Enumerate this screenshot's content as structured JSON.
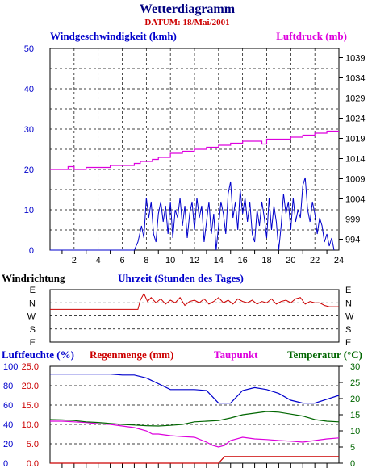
{
  "title": "Wetterdiagramm",
  "subtitle": "DATUM: 18/Mai/2001",
  "colors": {
    "title": "#000080",
    "subtitle": "#cc0000",
    "wind": "#0000cc",
    "pressure": "#dd00dd",
    "direction": "#cc0000",
    "humidity": "#0000cc",
    "rain": "#cc0000",
    "dewpoint": "#dd00dd",
    "temperature": "#006600"
  },
  "chart_data": [
    {
      "type": "line",
      "ylabel": "Windgeschwindigkeit (kmh)",
      "y2label": "Luftdruck (mb)",
      "xlabel": "Uhrzeit (Stunden des Tages)",
      "x_ticks": [
        "2",
        "4",
        "6",
        "8",
        "10",
        "12",
        "14",
        "16",
        "18",
        "20",
        "22",
        "24"
      ],
      "y_ticks": [
        "0",
        "10",
        "20",
        "30",
        "40",
        "50"
      ],
      "y2_ticks": [
        "994",
        "999",
        "1004",
        "1009",
        "1014",
        "1019",
        "1024",
        "1029",
        "1034",
        "1039"
      ],
      "xlim": [
        0,
        24
      ],
      "ylim": [
        0,
        50
      ],
      "y2lim": [
        991.3,
        1041.3
      ],
      "grid": true,
      "series": [
        {
          "name": "Windgeschwindigkeit (kmh)",
          "axis": "left",
          "x": [
            0,
            7.0,
            7.3,
            7.6,
            7.8,
            8.0,
            8.2,
            8.4,
            8.6,
            8.8,
            9.0,
            9.2,
            9.4,
            9.6,
            9.8,
            10.0,
            10.2,
            10.4,
            10.6,
            10.8,
            11.0,
            11.2,
            11.4,
            11.6,
            11.8,
            12.0,
            12.2,
            12.4,
            12.6,
            12.8,
            13.0,
            13.2,
            13.4,
            13.6,
            13.8,
            14.0,
            14.2,
            14.4,
            14.6,
            14.8,
            15.0,
            15.2,
            15.4,
            15.6,
            15.8,
            16.0,
            16.2,
            16.4,
            16.6,
            16.8,
            17.0,
            17.2,
            17.4,
            17.6,
            17.8,
            18.0,
            18.2,
            18.4,
            18.6,
            18.8,
            19.0,
            19.2,
            19.4,
            19.6,
            19.8,
            20.0,
            20.2,
            20.4,
            20.6,
            20.8,
            21.0,
            21.2,
            21.4,
            21.6,
            21.8,
            22.0,
            22.2,
            22.4,
            22.6,
            22.8,
            23.0,
            23.2,
            23.4,
            23.6
          ],
          "y": [
            0,
            0,
            2,
            6,
            3,
            13,
            8,
            12,
            4,
            2,
            9,
            12,
            7,
            11,
            4,
            12,
            3,
            10,
            8,
            13,
            6,
            11,
            3,
            9,
            12,
            5,
            13,
            8,
            11,
            2,
            7,
            12,
            4,
            9,
            0,
            6,
            12,
            9,
            4,
            14,
            17,
            8,
            12,
            5,
            15,
            9,
            13,
            7,
            12,
            4,
            2,
            10,
            6,
            12,
            8,
            3,
            13,
            5,
            11,
            7,
            0,
            6,
            14,
            9,
            12,
            5,
            13,
            7,
            10,
            8,
            16,
            18,
            10,
            7,
            12,
            9,
            4,
            8,
            6,
            2,
            4,
            1,
            3,
            0
          ]
        },
        {
          "name": "Luftdruck (mb)",
          "axis": "right",
          "x": [
            0,
            1,
            1.5,
            2,
            3,
            4,
            5,
            6,
            7,
            7.5,
            8,
            8.5,
            9,
            10,
            11,
            12,
            13,
            14,
            15,
            16,
            17,
            17.6,
            18,
            19,
            20,
            21,
            22,
            23,
            24
          ],
          "y": [
            1011.3,
            1011.3,
            1012.0,
            1011.3,
            1011.8,
            1011.8,
            1012.3,
            1012.3,
            1012.8,
            1013.3,
            1013.3,
            1013.8,
            1014.3,
            1015.3,
            1015.8,
            1016.3,
            1016.8,
            1017.3,
            1017.8,
            1018.3,
            1018.3,
            1017.6,
            1018.8,
            1018.8,
            1019.3,
            1019.8,
            1020.3,
            1020.8,
            1020.8
          ]
        }
      ]
    },
    {
      "type": "line",
      "ylabel": "Windrichtung",
      "categories": [
        "E",
        "S",
        "W",
        "N",
        "E"
      ],
      "xlim": [
        0,
        24
      ],
      "grid": true,
      "series": [
        {
          "name": "Windrichtung",
          "x": [
            0,
            7.3,
            7.5,
            7.8,
            8.1,
            8.4,
            8.8,
            9.2,
            9.6,
            10.0,
            10.4,
            10.8,
            11.2,
            11.6,
            12.0,
            12.4,
            12.8,
            13.2,
            13.6,
            14.0,
            14.4,
            14.8,
            15.2,
            15.6,
            16.0,
            16.4,
            16.8,
            17.2,
            17.6,
            18.0,
            18.4,
            18.8,
            19.2,
            19.6,
            20.0,
            20.4,
            20.8,
            21.2,
            21.6,
            22.0,
            22.4,
            22.8,
            23.2,
            23.6,
            24
          ],
          "y": [
            2.5,
            2.5,
            3.2,
            3.7,
            3.1,
            3.4,
            3.0,
            3.3,
            2.9,
            3.2,
            3.0,
            3.4,
            2.8,
            3.1,
            3.2,
            3.0,
            3.3,
            2.9,
            3.1,
            3.4,
            3.0,
            3.2,
            2.9,
            3.3,
            3.1,
            3.0,
            3.2,
            2.9,
            3.1,
            3.0,
            3.3,
            2.9,
            3.1,
            3.2,
            3.0,
            3.3,
            3.4,
            2.9,
            3.1,
            3.0,
            3.0,
            2.8,
            2.7,
            2.7,
            2.7
          ]
        }
      ]
    },
    {
      "type": "line",
      "ylabel": "Luftfeuchte (%)",
      "ylabel2": "Regenmenge (mm)",
      "ylabel3": "Taupunkt",
      "y2label": "Temperatur (°C)",
      "y_ticks_humidity": [
        "0",
        "20",
        "40",
        "60",
        "80",
        "100"
      ],
      "y_ticks_rain": [
        "0.0",
        "5.0",
        "10.0",
        "15.0",
        "20.0",
        "25.0"
      ],
      "y2_ticks": [
        "0",
        "5",
        "10",
        "15",
        "20",
        "25",
        "30"
      ],
      "xlim": [
        0,
        24
      ],
      "ylim": [
        0,
        100
      ],
      "y2lim": [
        0,
        30
      ],
      "grid": true,
      "series": [
        {
          "name": "Luftfeuchte (%)",
          "axis": "left",
          "x": [
            0,
            3,
            5,
            6,
            7,
            8,
            9,
            10,
            11,
            12,
            13,
            14,
            15,
            16,
            17,
            18,
            19,
            20,
            21,
            22,
            23,
            24
          ],
          "y": [
            92,
            92,
            92,
            91,
            91,
            88,
            82,
            76,
            76,
            76,
            75,
            62,
            62,
            75,
            78,
            76,
            72,
            65,
            62,
            62,
            66,
            70
          ],
          "values_unit": "%"
        },
        {
          "name": "Regenmenge (mm)",
          "axis": "left",
          "x": [
            0,
            0.2,
            0.3,
            13,
            14,
            14.5,
            16,
            24
          ],
          "y": [
            0,
            0,
            0,
            0,
            0,
            1.7,
            1.7,
            1.7
          ],
          "values_unit": "mm"
        },
        {
          "name": "Taupunkt",
          "axis": "right",
          "x": [
            0,
            1,
            2,
            3,
            4,
            5,
            6,
            7,
            8,
            8.5,
            9,
            10,
            11,
            12,
            13,
            13.5,
            14,
            14.5,
            15,
            16,
            17,
            18,
            19,
            20,
            21,
            22,
            23,
            24
          ],
          "y": [
            13,
            13,
            12.8,
            12.6,
            12.2,
            12.0,
            11.5,
            11,
            10,
            9,
            9,
            8.5,
            8.2,
            8,
            6.5,
            5.5,
            5,
            5.5,
            7,
            8,
            7.5,
            7.3,
            7,
            6.8,
            6.5,
            7,
            7.5,
            7.8
          ]
        },
        {
          "name": "Temperatur (°C)",
          "axis": "right",
          "x": [
            0,
            1,
            2,
            3,
            4,
            5,
            6,
            7,
            8,
            9,
            10,
            11,
            12,
            13,
            14,
            15,
            16,
            17,
            18,
            19,
            20,
            21,
            22,
            23,
            24
          ],
          "y": [
            13.5,
            13.4,
            13.2,
            12.8,
            12.6,
            12.3,
            12.0,
            11.8,
            11.6,
            11.5,
            11.7,
            12.0,
            12.8,
            13.0,
            13.2,
            14.0,
            15.0,
            15.5,
            16.0,
            15.8,
            15.2,
            14.6,
            13.5,
            13.0,
            12.8
          ]
        }
      ]
    }
  ]
}
